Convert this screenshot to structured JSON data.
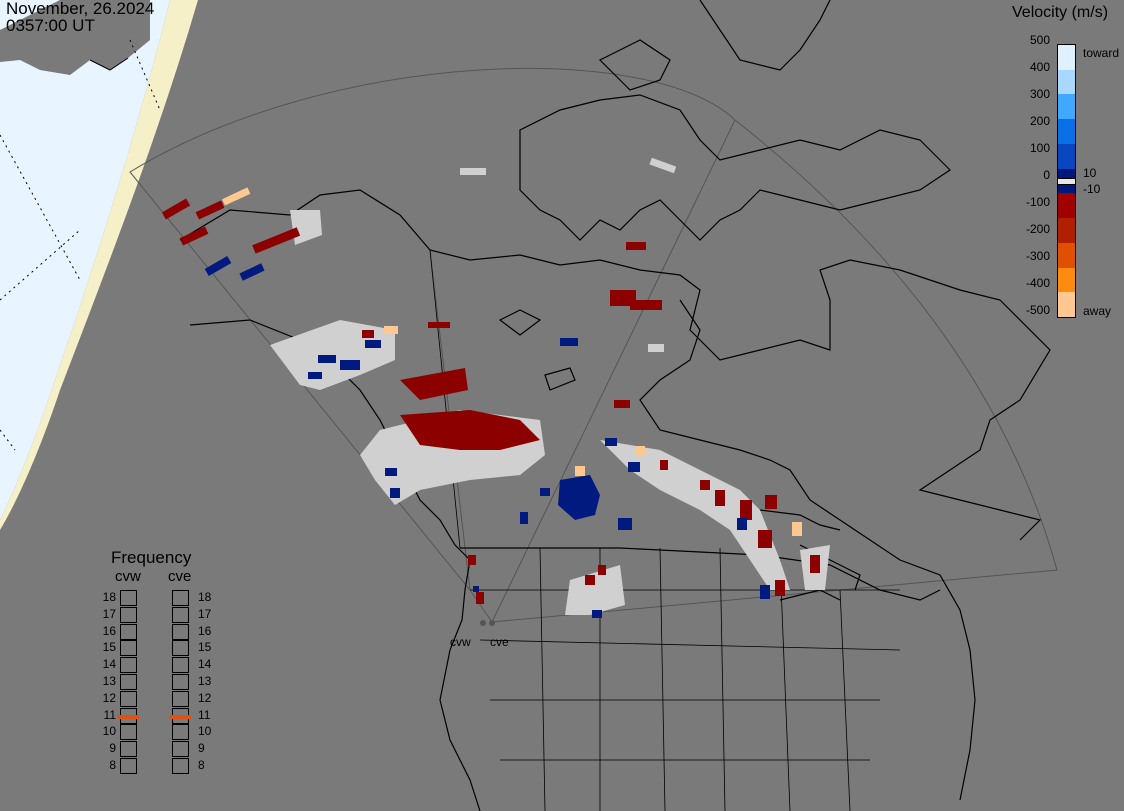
{
  "header": {
    "date": "November, 26.2024",
    "time": "0357:00 UT"
  },
  "velocity_scale": {
    "title": "Velocity (m/s)",
    "ticks": [
      "500",
      "400",
      "300",
      "200",
      "100",
      "0",
      "-100",
      "-200",
      "-300",
      "-400",
      "-500"
    ],
    "inner_ticks": [
      "10",
      "-10"
    ],
    "label_toward": "toward",
    "label_away": "away",
    "colors": [
      "#dff0ff",
      "#a8d8ff",
      "#40a8ff",
      "#0a70e8",
      "#0a46c0",
      "#00187a",
      "#a00000",
      "#b02000",
      "#e05000",
      "#ff8a10",
      "#ffc890"
    ]
  },
  "frequency": {
    "title": "Frequency",
    "columns": [
      {
        "name": "cvw",
        "selected": "11"
      },
      {
        "name": "cve",
        "selected": "11"
      }
    ],
    "ticks": [
      "18",
      "17",
      "16",
      "15",
      "14",
      "13",
      "12",
      "11",
      "10",
      "9",
      "8"
    ],
    "marker_color": "#e05010"
  },
  "radars": {
    "west": "cvw",
    "east": "cve"
  },
  "colors": {
    "land": "#7a7a7a",
    "night_side": "#e8f4ff",
    "terminator": "#f5f0c8",
    "scatter_ground": "#d0d0d0",
    "toward": "#001a80",
    "away": "#8c0000"
  }
}
